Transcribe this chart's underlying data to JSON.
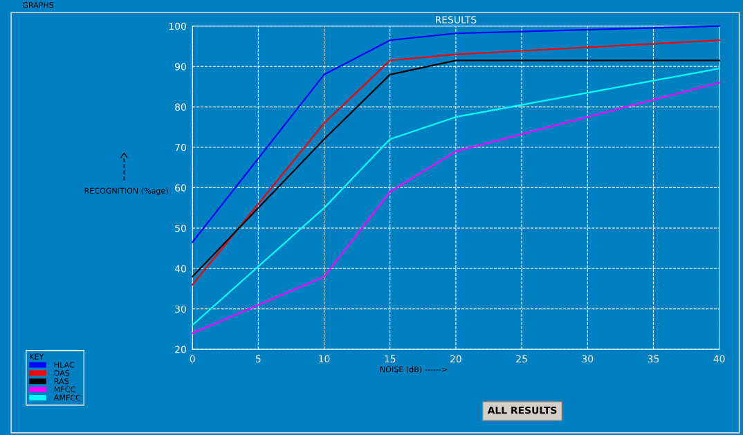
{
  "chart_data": {
    "type": "line",
    "title": "RESULTS",
    "xlabel": "NOISE (dB) ------>",
    "ylabel": "RECOGNITION (%age)",
    "legend_title": "KEY",
    "x": [
      0,
      10,
      15,
      20,
      40
    ],
    "series": [
      {
        "name": "HLAC",
        "color": "#0000ff",
        "values": [
          46.5,
          88,
          96.5,
          98.2,
          100
        ]
      },
      {
        "name": "DAS",
        "color": "#ff0000",
        "values": [
          36,
          76,
          91.5,
          93,
          96.5
        ]
      },
      {
        "name": "RAS",
        "color": "#000000",
        "values": [
          38,
          72,
          88,
          91.5,
          91.5
        ]
      },
      {
        "name": "MFCC",
        "color": "#ff00ff",
        "values": [
          24,
          38,
          59,
          69,
          86
        ]
      },
      {
        "name": "AMFCC",
        "color": "#00ffff",
        "values": [
          26,
          55,
          72,
          77.5,
          89.5
        ]
      }
    ],
    "xlim": [
      0,
      40
    ],
    "xticks": [
      0,
      5,
      10,
      15,
      20,
      25,
      30,
      35,
      40
    ],
    "ylim": [
      20,
      100
    ],
    "yticks": [
      20,
      30,
      40,
      50,
      60,
      70,
      80,
      90,
      100
    ],
    "grid": true,
    "legend": "bottom left",
    "marker": "none",
    "line_style": "solid",
    "annotations": [
      "GRAPHS",
      "ALL RESULTS"
    ]
  }
}
